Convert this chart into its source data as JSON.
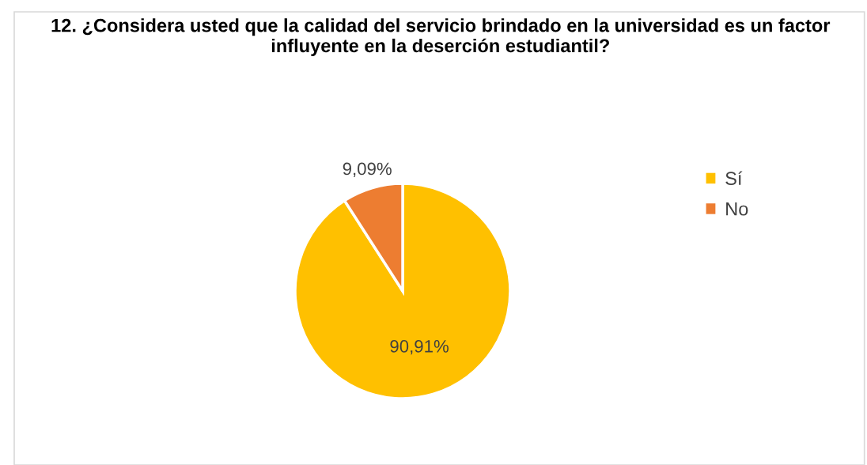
{
  "chart_data": {
    "type": "pie",
    "title": "12. ¿Considera usted que la calidad del servicio brindado en la universidad es un factor influyente en la deserción estudiantil?",
    "categories": [
      "Sí",
      "No"
    ],
    "values": [
      90.91,
      9.09
    ],
    "colors": [
      "#ffc000",
      "#ed7d31"
    ],
    "value_labels": [
      "90,91%",
      "9,09%"
    ],
    "legend": "right"
  }
}
